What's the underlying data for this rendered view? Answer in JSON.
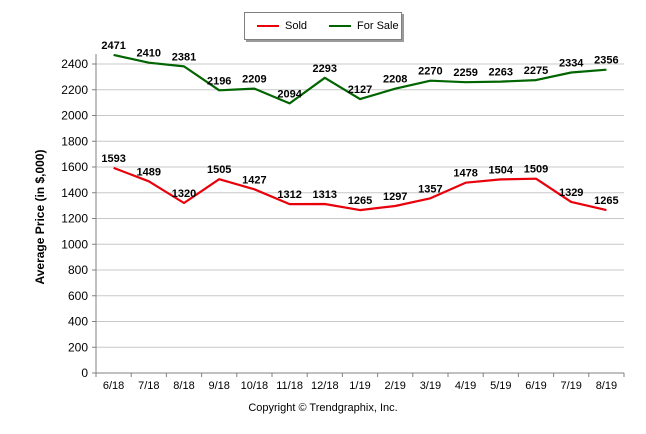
{
  "chart_data": {
    "type": "line",
    "categories": [
      "6/18",
      "7/18",
      "8/18",
      "9/18",
      "10/18",
      "11/18",
      "12/18",
      "1/19",
      "2/19",
      "3/19",
      "4/19",
      "5/19",
      "6/19",
      "7/19",
      "8/19"
    ],
    "series": [
      {
        "name": "Sold",
        "color": "#e8000b",
        "values": [
          1593,
          1489,
          1320,
          1505,
          1427,
          1312,
          1313,
          1265,
          1297,
          1357,
          1478,
          1504,
          1509,
          1329,
          1265
        ]
      },
      {
        "name": "For Sale",
        "color": "#006400",
        "values": [
          2471,
          2410,
          2381,
          2196,
          2209,
          2094,
          2293,
          2127,
          2208,
          2270,
          2259,
          2263,
          2275,
          2334,
          2356
        ]
      }
    ],
    "ylabel": "Average Price (in $,000)",
    "ylim": [
      0,
      2400
    ],
    "yticks": [
      0,
      200,
      400,
      600,
      800,
      1000,
      1200,
      1400,
      1600,
      1800,
      2000,
      2200,
      2400
    ],
    "grid": true,
    "legend": "top-center"
  },
  "footer": "Copyright © Trendgraphix, Inc."
}
